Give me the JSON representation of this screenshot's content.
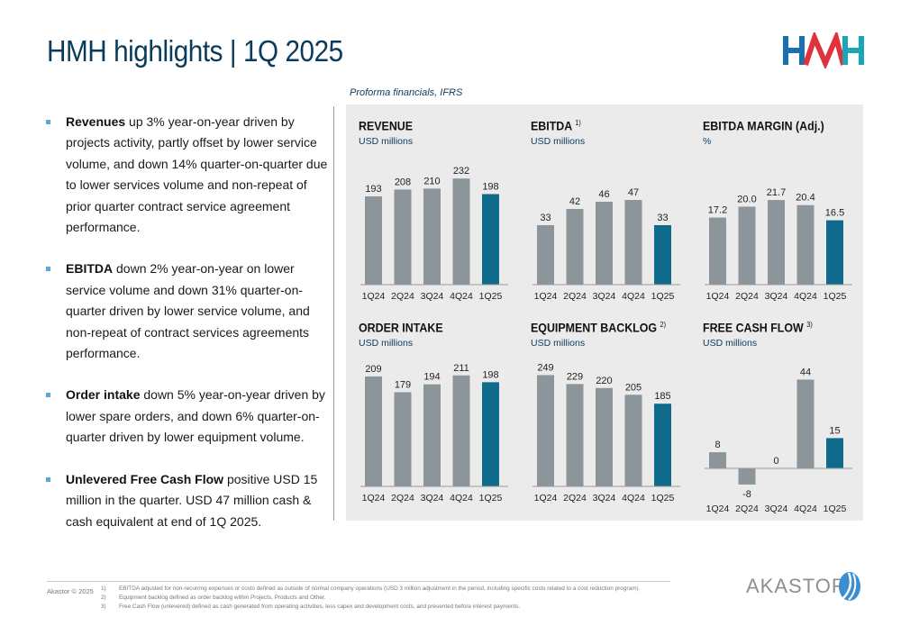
{
  "header": {
    "title": "HMH highlights | 1Q 2025",
    "logo_text": "HMH"
  },
  "subtitle": "Proforma financials, IFRS",
  "bullets": [
    {
      "lead": "Revenues",
      "text": " up 3% year-on-year driven by projects activity, partly offset by lower service volume, and down 14% quarter-on-quarter due to lower services volume and non-repeat of prior quarter contract service agreement performance."
    },
    {
      "lead": "EBITDA",
      "text": " down 2% year-on-year on lower service volume and down 31% quarter-on-quarter driven by lower service volume, and non-repeat of contract services agreements performance."
    },
    {
      "lead": "Order intake",
      "text": " down 5% year-on-year driven by lower spare orders, and down 6% quarter-on-quarter driven by lower equipment volume."
    },
    {
      "lead": "Unlevered Free Cash Flow",
      "text": " positive USD 15 million in the quarter. USD 47 million cash & cash equivalent at end of 1Q 2025."
    }
  ],
  "colors": {
    "bar_gray": "#8c9599",
    "bar_highlight": "#0f6a8b",
    "title": "#0a3a5c"
  },
  "chart_data": [
    {
      "type": "bar",
      "title": "REVENUE",
      "footnote": "",
      "unit": "USD millions",
      "categories": [
        "1Q24",
        "2Q24",
        "3Q24",
        "4Q24",
        "1Q25"
      ],
      "values": [
        193,
        208,
        210,
        232,
        198
      ],
      "labels": [
        "193",
        "208",
        "210",
        "232",
        "198"
      ],
      "ylim": [
        0,
        260
      ]
    },
    {
      "type": "bar",
      "title": "EBITDA",
      "footnote": "1)",
      "unit": "USD millions",
      "categories": [
        "1Q24",
        "2Q24",
        "3Q24",
        "4Q24",
        "1Q25"
      ],
      "values": [
        33,
        42,
        46,
        47,
        33
      ],
      "labels": [
        "33",
        "42",
        "46",
        "47",
        "33"
      ],
      "ylim": [
        0,
        66
      ]
    },
    {
      "type": "bar",
      "title": "EBITDA MARGIN (Adj.)",
      "footnote": "",
      "unit": "%",
      "categories": [
        "1Q24",
        "2Q24",
        "3Q24",
        "4Q24",
        "1Q25"
      ],
      "values": [
        17.2,
        20.0,
        21.7,
        20.4,
        16.5
      ],
      "labels": [
        "17.2",
        "20.0",
        "21.7",
        "20.4",
        "16.5"
      ],
      "ylim": [
        0,
        30.5
      ]
    },
    {
      "type": "bar",
      "title": "ORDER INTAKE",
      "footnote": "",
      "unit": "USD millions",
      "categories": [
        "1Q24",
        "2Q24",
        "3Q24",
        "4Q24",
        "1Q25"
      ],
      "values": [
        209,
        179,
        194,
        211,
        198
      ],
      "labels": [
        "209",
        "179",
        "194",
        "211",
        "198"
      ],
      "ylim": [
        0,
        226
      ]
    },
    {
      "type": "bar",
      "title": "EQUIPMENT BACKLOG",
      "footnote": "2)",
      "unit": "USD millions",
      "categories": [
        "1Q24",
        "2Q24",
        "3Q24",
        "4Q24",
        "1Q25"
      ],
      "values": [
        249,
        229,
        220,
        205,
        185
      ],
      "labels": [
        "249",
        "229",
        "220",
        "205",
        "185"
      ],
      "ylim": [
        0,
        266
      ]
    },
    {
      "type": "bar",
      "title": "FREE CASH FLOW",
      "footnote": "3)",
      "unit": "USD millions",
      "categories": [
        "1Q24",
        "2Q24",
        "3Q24",
        "4Q24",
        "1Q25"
      ],
      "values": [
        8,
        -8,
        0,
        44,
        15
      ],
      "labels": [
        "8",
        "-8",
        "0",
        "44",
        "15"
      ],
      "ylim": [
        -12,
        50
      ]
    }
  ],
  "footer": {
    "copyright": "Akastor © 2025",
    "footnotes": [
      {
        "num": "1)",
        "text": "EBITDA adjusted for non-recurring expenses or costs defined as outside of normal company operations (USD 3 million adjustment in the period, including specific costs related to a cost reduction program)."
      },
      {
        "num": "2)",
        "text": "Equipment backlog defined as order backlog within Projects, Products and Other."
      },
      {
        "num": "3)",
        "text": "Free Cash Flow (unlevered) defined as cash generated from operating activities, less capex and development costs, and presented before interest payments."
      }
    ],
    "brand": "AKASTOR"
  }
}
